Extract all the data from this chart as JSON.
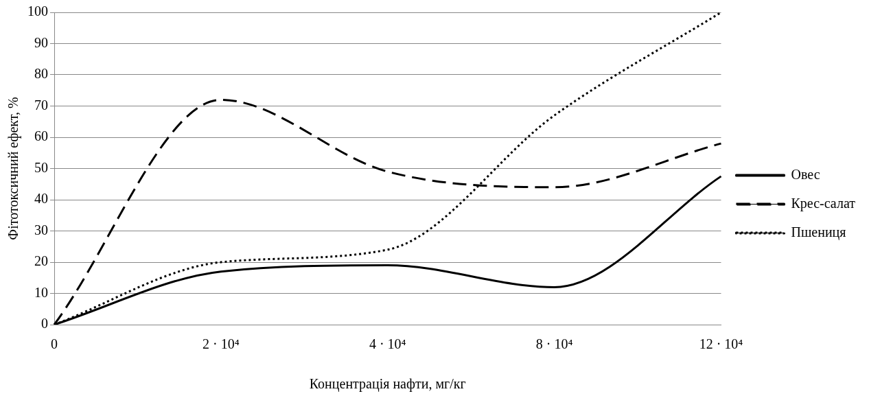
{
  "chart_data": {
    "type": "line",
    "xlabel": "Концентрація нафти, мг/кг",
    "ylabel": "Фітотоксичний ефект, %",
    "categories": [
      "0",
      "2 · 10⁴",
      "4 · 10⁴",
      "8 · 10⁴",
      "12 · 10⁴"
    ],
    "series": [
      {
        "name": "Овес",
        "color": "#000000",
        "line_style": "solid",
        "values": [
          0,
          17,
          19,
          12,
          47.5
        ]
      },
      {
        "name": "Крес-салат",
        "color": "#000000",
        "line_style": "dashed",
        "values": [
          0,
          72,
          49,
          44,
          58
        ]
      },
      {
        "name": "Пшениця",
        "color": "#000000",
        "line_style": "dotted",
        "values": [
          0,
          20,
          24,
          67,
          100
        ]
      }
    ],
    "ylim": [
      0,
      100
    ],
    "yticks": [
      0,
      10,
      20,
      30,
      40,
      50,
      60,
      70,
      80,
      90,
      100
    ],
    "grid": "y",
    "legend": "right",
    "marker": "none"
  }
}
